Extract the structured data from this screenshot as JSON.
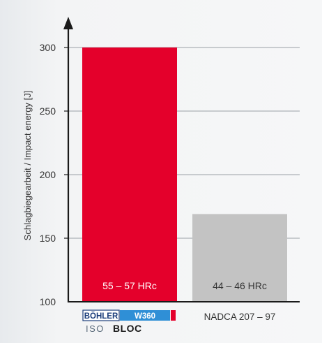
{
  "chart_data": {
    "type": "bar",
    "categories": [
      "BÖHLER W360 ISOBLOC",
      "NADCA 207 – 97"
    ],
    "values": [
      300,
      169
    ],
    "bar_labels": [
      "55 – 57 HRc",
      "44 – 46 HRc"
    ],
    "bar_colors": [
      "#e4002b",
      "#c3c3c3"
    ],
    "bar_label_colors": [
      "#ffffff",
      "#333333"
    ],
    "ylabel": "Schlagbiegearbeit / Impact energy [J]",
    "ylim": [
      100,
      300
    ],
    "yticks": [
      "100",
      "150",
      "200",
      "250",
      "300"
    ],
    "grid": true
  },
  "logo": {
    "brand": "BÖHLER",
    "grade": "W360",
    "iso": "ISO",
    "bloc": "BLOC",
    "brand_color": "#1a3c7a",
    "grade_bg": "#2f8fd6",
    "accent": "#e4002b"
  },
  "xlabels": {
    "second": "NADCA 207 – 97"
  }
}
